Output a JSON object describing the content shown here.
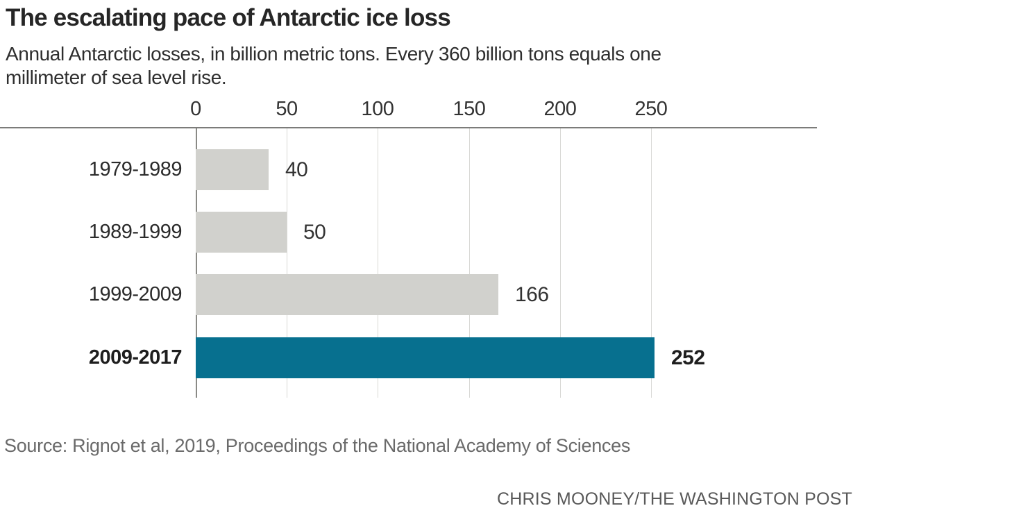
{
  "header": {
    "subtitle_line1": "Annual Antarctic losses, in billion metric tons. Every 360 billion tons equals one",
    "subtitle_line2": "millimeter of sea level rise."
  },
  "chart_data": {
    "type": "bar",
    "orientation": "horizontal",
    "title": "The escalating pace of Antarctic ice loss",
    "subtitle": "Annual Antarctic losses, in billion metric tons. Every 360 billion tons equals one millimeter of sea level rise.",
    "categories": [
      "1979-1989",
      "1989-1999",
      "1999-2009",
      "2009-2017"
    ],
    "values": [
      40,
      50,
      166,
      252
    ],
    "x_ticks": [
      0,
      50,
      100,
      150,
      200,
      250
    ],
    "xlim": [
      0,
      250
    ],
    "grid": true,
    "legend": false,
    "bar_color": "#d1d1cd",
    "emphasis_color": "#07708f",
    "emphasized_index": 3,
    "xlabel": "",
    "ylabel": ""
  },
  "footer": {
    "source": "Source: Rignot et al, 2019, Proceedings of the National Academy of Sciences",
    "credit": "CHRIS MOONEY/THE WASHINGTON POST"
  }
}
